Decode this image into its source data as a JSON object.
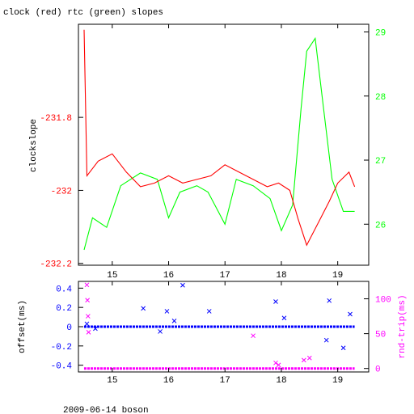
{
  "page": {
    "title": "clock (red) rtc (green) slopes",
    "footer": "2009-06-14 boson"
  },
  "colors": {
    "clock": "#ff0000",
    "rtc": "#00ff00",
    "offset": "#0000ff",
    "rndtrip": "#ff00ff",
    "frame": "#000000"
  },
  "chart_data": [
    {
      "type": "line",
      "title": "clock (red) rtc (green) slopes",
      "ylabel": "clockslope",
      "xlim": [
        14.4,
        19.55
      ],
      "ylim": [
        -232.205,
        -231.545
      ],
      "y2lim": [
        25.36,
        29.12
      ],
      "x_ticks": [
        15,
        16,
        17,
        18,
        19
      ],
      "y_ticks": [
        -231.8,
        -232,
        -232.2
      ],
      "y_tick_labels": [
        "-231.8",
        "-232",
        "-232.2"
      ],
      "y2_ticks": [
        26,
        27,
        28,
        29
      ],
      "y2_tick_labels": [
        "26",
        "27",
        "28",
        "29"
      ],
      "grid": false,
      "series": [
        {
          "name": "clock",
          "axis": "left",
          "color": "#ff0000",
          "x": [
            14.5,
            14.55,
            14.75,
            15.0,
            15.25,
            15.5,
            15.75,
            16.0,
            16.25,
            16.5,
            16.75,
            17.0,
            17.25,
            17.5,
            17.75,
            17.95,
            18.15,
            18.3,
            18.45,
            18.55,
            18.65,
            18.85,
            19.0,
            19.2,
            19.3
          ],
          "y": [
            -231.56,
            -231.96,
            -231.92,
            -231.9,
            -231.95,
            -231.99,
            -231.98,
            -231.96,
            -231.98,
            -231.97,
            -231.96,
            -231.93,
            -231.95,
            -231.97,
            -231.99,
            -231.98,
            -232.0,
            -232.08,
            -232.15,
            -232.12,
            -232.09,
            -232.03,
            -231.98,
            -231.95,
            -231.99
          ]
        },
        {
          "name": "rtc",
          "axis": "right",
          "color": "#00ff00",
          "x": [
            14.5,
            14.65,
            14.9,
            15.15,
            15.5,
            15.8,
            16.0,
            16.2,
            16.5,
            16.7,
            17.0,
            17.2,
            17.5,
            17.8,
            18.0,
            18.2,
            18.35,
            18.45,
            18.6,
            18.75,
            18.9,
            19.1,
            19.3
          ],
          "y": [
            25.6,
            26.1,
            25.95,
            26.6,
            26.8,
            26.7,
            26.1,
            26.5,
            26.6,
            26.5,
            26.0,
            26.7,
            26.6,
            26.4,
            25.9,
            26.3,
            27.8,
            28.7,
            28.9,
            27.8,
            26.7,
            26.2,
            26.2
          ]
        }
      ]
    },
    {
      "type": "scatter",
      "ylabel": "offset(ms)",
      "y2label": "rnd-trip(ms)",
      "xlim": [
        14.4,
        19.55
      ],
      "ylim": [
        -0.47,
        0.47
      ],
      "y2lim": [
        -5,
        125
      ],
      "x_ticks": [
        15,
        16,
        17,
        18,
        19
      ],
      "y_ticks": [
        0.4,
        0.2,
        0,
        -0.2,
        -0.4
      ],
      "y_tick_labels": [
        "0.4",
        "0.2",
        "0",
        "-0.2",
        "-0.4"
      ],
      "y2_ticks": [
        0,
        50,
        100
      ],
      "y2_tick_labels": [
        "0",
        "50",
        "100"
      ],
      "grid": false,
      "series": [
        {
          "name": "offset",
          "axis": "left",
          "color": "#0000ff",
          "x": [
            14.55,
            15.55,
            15.85,
            15.97,
            16.25,
            16.72,
            17.9,
            18.05,
            18.85,
            18.8,
            19.1,
            19.22,
            14.7,
            16.1
          ],
          "y": [
            0.03,
            0.19,
            -0.05,
            0.16,
            0.43,
            0.16,
            0.26,
            0.09,
            0.27,
            -0.14,
            -0.22,
            0.13,
            -0.02,
            0.06
          ]
        },
        {
          "name": "rnd-trip",
          "axis": "right",
          "color": "#ff00ff",
          "x": [
            14.55,
            14.56,
            14.57,
            14.58,
            17.5,
            17.9,
            17.95,
            18.4,
            18.5
          ],
          "y": [
            120,
            98,
            75,
            52,
            47,
            8,
            5,
            12,
            15
          ]
        }
      ]
    }
  ]
}
